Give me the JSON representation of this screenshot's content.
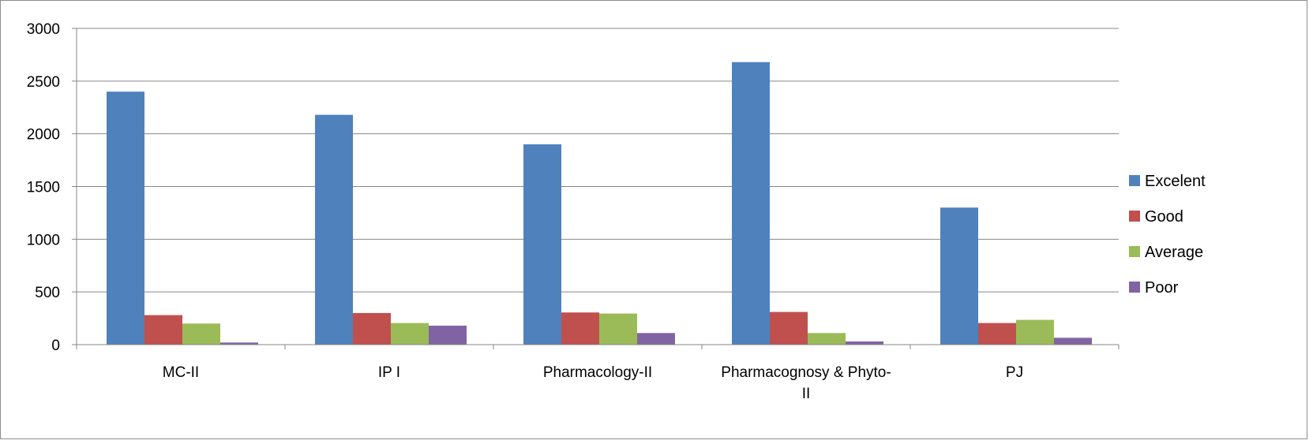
{
  "chart_data": {
    "type": "bar",
    "title": "",
    "xlabel": "",
    "ylabel": "",
    "categories": [
      "MC-II",
      "IP I",
      "Pharmacology-II",
      "Pharmacognosy & Phyto-II",
      "PJ"
    ],
    "category_label_lines": [
      [
        "MC-II"
      ],
      [
        "IP I"
      ],
      [
        "Pharmacology-II"
      ],
      [
        "Pharmacognosy & Phyto-",
        "II"
      ],
      [
        "PJ"
      ]
    ],
    "ylim": [
      0,
      3000
    ],
    "yticks": [
      0,
      500,
      1000,
      1500,
      2000,
      2500,
      3000
    ],
    "grid": true,
    "legend_position": "right",
    "series": [
      {
        "name": "Excelent",
        "color": "#4f81bd",
        "values": [
          2400,
          2180,
          1900,
          2680,
          1300
        ]
      },
      {
        "name": "Good",
        "color": "#c0504d",
        "values": [
          280,
          300,
          305,
          310,
          205
        ]
      },
      {
        "name": "Average",
        "color": "#9bbb59",
        "values": [
          200,
          205,
          295,
          110,
          235
        ]
      },
      {
        "name": "Poor",
        "color": "#8064a2",
        "values": [
          20,
          180,
          110,
          30,
          65
        ]
      }
    ]
  }
}
